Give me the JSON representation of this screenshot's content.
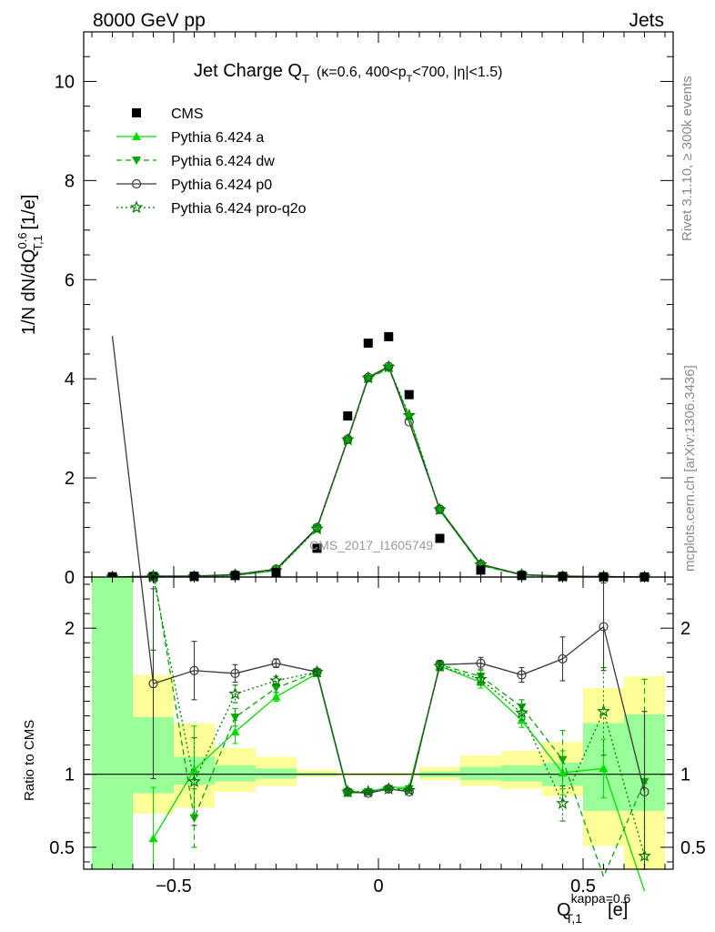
{
  "header": {
    "left": "8000 GeV pp",
    "right": "Jets",
    "rivet": "Rivet 3.1.10, ≥ 300k events",
    "mcplots": "mcplots.cern.ch [arXiv:1306.3436]",
    "watermark": "CMS_2017_I1605749"
  },
  "chart_data": {
    "type": "scatter",
    "title": "Jet Charge Q_T (κ=0.6, 400<p_T<700, |η|<1.5)",
    "title_parts": {
      "main": "Jet Charge Q",
      "main_sub": "T",
      "detail_a": "(κ=0.6, 400<p",
      "detail_sub": "T",
      "detail_b": "<700, |η|<1.5)"
    },
    "ylabel": "1/N dN/dQ^{0.6}_{T,1} [1/e]",
    "ylabel_parts": {
      "a": "1/N dN/dQ",
      "sup": "0.6",
      "sub": "T,1",
      "b": " [1/e]"
    },
    "xlabel": "Q^{kappa=0.6}_{T,1} [e]",
    "xlabel_parts": {
      "a": "Q",
      "sup": "kappa=0.6",
      "sub": "T,1",
      "b": "[e]"
    },
    "ratio_ylabel": "Ratio to CMS",
    "xlim": [
      -0.72,
      0.72
    ],
    "ylim": [
      0,
      11
    ],
    "ratio_ylim": [
      0.35,
      2.35
    ],
    "x_ticks": [
      {
        "value": -0.5,
        "label": "−0.5"
      },
      {
        "value": 0,
        "label": "0"
      },
      {
        "value": 0.5,
        "label": "0.5"
      }
    ],
    "y_ticks": [
      {
        "value": 0,
        "label": "0"
      },
      {
        "value": 2,
        "label": "2"
      },
      {
        "value": 4,
        "label": "4"
      },
      {
        "value": 6,
        "label": "6"
      },
      {
        "value": 8,
        "label": "8"
      },
      {
        "value": 10,
        "label": "10"
      }
    ],
    "ratio_ticks": [
      {
        "value": 0.5,
        "label": "0.5"
      },
      {
        "value": 1,
        "label": "1"
      },
      {
        "value": 2,
        "label": "2"
      }
    ],
    "legend_position": "top-left",
    "bins": [
      {
        "lo": -0.7,
        "hi": -0.6,
        "x": -0.65,
        "data": 0.005
      },
      {
        "lo": -0.6,
        "hi": -0.5,
        "x": -0.55,
        "data": 0.01
      },
      {
        "lo": -0.5,
        "hi": -0.4,
        "x": -0.45,
        "data": 0.015
      },
      {
        "lo": -0.4,
        "hi": -0.3,
        "x": -0.35,
        "data": 0.03
      },
      {
        "lo": -0.3,
        "hi": -0.2,
        "x": -0.25,
        "data": 0.09
      },
      {
        "lo": -0.2,
        "hi": -0.1,
        "x": -0.15,
        "data": 0.58
      },
      {
        "lo": -0.1,
        "hi": -0.05,
        "x": -0.075,
        "data": 3.25
      },
      {
        "lo": -0.05,
        "hi": 0.0,
        "x": -0.025,
        "data": 4.72
      },
      {
        "lo": 0.0,
        "hi": 0.05,
        "x": 0.025,
        "data": 4.85
      },
      {
        "lo": 0.05,
        "hi": 0.1,
        "x": 0.075,
        "data": 3.68
      },
      {
        "lo": 0.1,
        "hi": 0.2,
        "x": 0.15,
        "data": 0.78
      },
      {
        "lo": 0.2,
        "hi": 0.3,
        "x": 0.25,
        "data": 0.14
      },
      {
        "lo": 0.3,
        "hi": 0.4,
        "x": 0.35,
        "data": 0.03
      },
      {
        "lo": 0.4,
        "hi": 0.5,
        "x": 0.45,
        "data": 0.012
      },
      {
        "lo": 0.5,
        "hi": 0.6,
        "x": 0.55,
        "data": 0.005
      },
      {
        "lo": 0.6,
        "hi": 0.7,
        "x": 0.65,
        "data": 0.003
      }
    ],
    "bands": [
      {
        "lo": -0.7,
        "hi": -0.6,
        "g": [
          0.3,
          2.35
        ],
        "y": [
          0.3,
          2.35
        ]
      },
      {
        "lo": -0.6,
        "hi": -0.5,
        "g": [
          0.87,
          1.39
        ],
        "y": [
          0.73,
          1.68
        ]
      },
      {
        "lo": -0.5,
        "hi": -0.4,
        "g": [
          0.93,
          1.12
        ],
        "y": [
          0.77,
          1.35
        ]
      },
      {
        "lo": -0.4,
        "hi": -0.3,
        "g": [
          0.95,
          1.06
        ],
        "y": [
          0.88,
          1.18
        ]
      },
      {
        "lo": -0.3,
        "hi": -0.2,
        "g": [
          0.97,
          1.04
        ],
        "y": [
          0.92,
          1.12
        ]
      },
      {
        "lo": -0.2,
        "hi": -0.1,
        "g": [
          0.99,
          1.01
        ],
        "y": [
          0.98,
          1.03
        ]
      },
      {
        "lo": -0.1,
        "hi": 0.1,
        "g": [
          0.995,
          1.005
        ],
        "y": [
          0.99,
          1.01
        ]
      },
      {
        "lo": 0.1,
        "hi": 0.2,
        "g": [
          0.98,
          1.02
        ],
        "y": [
          0.96,
          1.05
        ]
      },
      {
        "lo": 0.2,
        "hi": 0.3,
        "g": [
          0.96,
          1.05
        ],
        "y": [
          0.92,
          1.13
        ]
      },
      {
        "lo": 0.3,
        "hi": 0.4,
        "g": [
          0.95,
          1.06
        ],
        "y": [
          0.9,
          1.16
        ]
      },
      {
        "lo": 0.4,
        "hi": 0.5,
        "g": [
          0.92,
          1.08
        ],
        "y": [
          0.85,
          1.22
        ]
      },
      {
        "lo": 0.5,
        "hi": 0.6,
        "g": [
          0.75,
          1.35
        ],
        "y": [
          0.51,
          1.59
        ]
      },
      {
        "lo": 0.6,
        "hi": 0.7,
        "g": [
          0.75,
          1.41
        ],
        "y": [
          0.35,
          1.67
        ]
      }
    ],
    "series": [
      {
        "name": "CMS",
        "marker": "square-filled",
        "color": "#000000",
        "y": [
          0.005,
          0.01,
          0.015,
          0.03,
          0.09,
          0.58,
          3.25,
          4.72,
          4.85,
          3.68,
          0.78,
          0.14,
          0.03,
          0.012,
          0.005,
          0.003
        ]
      },
      {
        "name": "Pythia 6.424 a",
        "marker": "triangle-up-filled",
        "line": "solid",
        "color": "#00dd00",
        "y": [
          0.0,
          0.0,
          0.01,
          0.03,
          0.13,
          0.98,
          2.77,
          4.01,
          4.23,
          3.24,
          1.34,
          0.24,
          0.045,
          0.012,
          0.005,
          0.0
        ],
        "ratio": [
          null,
          0.56,
          1.03,
          1.29,
          1.53,
          1.69,
          0.87,
          0.88,
          0.91,
          0.91,
          1.74,
          1.63,
          1.37,
          1.01,
          1.04,
          0.2
        ],
        "ratio_err": [
          null,
          0.35,
          0.3,
          0.08,
          0.03,
          0.02,
          0.01,
          0.01,
          0.01,
          0.01,
          0.03,
          0.04,
          0.05,
          0.15,
          0.2,
          null
        ]
      },
      {
        "name": "Pythia 6.424 dw",
        "marker": "triangle-down-filled",
        "line": "dashed",
        "color": "#00aa00",
        "y": [
          0.0,
          0.0,
          0.01,
          0.04,
          0.14,
          0.99,
          2.76,
          4.0,
          4.21,
          3.22,
          1.35,
          0.23,
          0.044,
          0.013,
          0.007,
          0.003
        ],
        "ratio": [
          null,
          2.4,
          0.7,
          1.39,
          1.59,
          1.7,
          0.88,
          0.88,
          0.9,
          0.9,
          1.75,
          1.67,
          1.46,
          1.1,
          0.3,
          0.95
        ],
        "ratio_err": [
          null,
          0.5,
          0.2,
          0.06,
          0.03,
          0.02,
          0.01,
          0.01,
          0.01,
          0.01,
          0.03,
          0.04,
          0.05,
          0.2,
          null,
          0.7
        ]
      },
      {
        "name": "Pythia 6.424 p0",
        "marker": "circle-open",
        "line": "solid",
        "color": "#3a3a3a",
        "y": [
          0.0,
          0.02,
          0.02,
          0.05,
          0.16,
          1.0,
          2.78,
          4.03,
          4.25,
          3.13,
          1.37,
          0.26,
          0.05,
          0.02,
          0.01,
          0.003
        ],
        "ratio": [
          4.0,
          1.62,
          1.71,
          1.69,
          1.76,
          1.7,
          0.88,
          0.87,
          0.9,
          0.88,
          1.75,
          1.76,
          1.68,
          1.79,
          2.01,
          0.88
        ],
        "ratio_err": [
          null,
          0.65,
          0.2,
          0.06,
          0.03,
          0.02,
          0.01,
          0.01,
          0.01,
          0.01,
          0.03,
          0.04,
          0.05,
          0.15,
          0.3,
          0.55
        ]
      },
      {
        "name": "Pythia 6.424 pro-q2o",
        "marker": "star-open",
        "line": "dotted",
        "color": "#007700",
        "y": [
          0.0,
          0.02,
          0.01,
          0.04,
          0.13,
          0.97,
          2.77,
          4.02,
          4.24,
          3.26,
          1.36,
          0.25,
          0.045,
          0.01,
          0.006,
          0.0
        ],
        "ratio": [
          null,
          2.35,
          0.95,
          1.55,
          1.64,
          1.7,
          0.88,
          0.88,
          0.9,
          0.89,
          1.74,
          1.65,
          1.42,
          0.8,
          1.43,
          0.44
        ],
        "ratio_err": [
          null,
          0.5,
          0.3,
          0.06,
          0.03,
          0.02,
          0.01,
          0.01,
          0.01,
          0.01,
          0.03,
          0.04,
          0.05,
          0.12,
          0.3,
          0.5
        ]
      }
    ]
  }
}
